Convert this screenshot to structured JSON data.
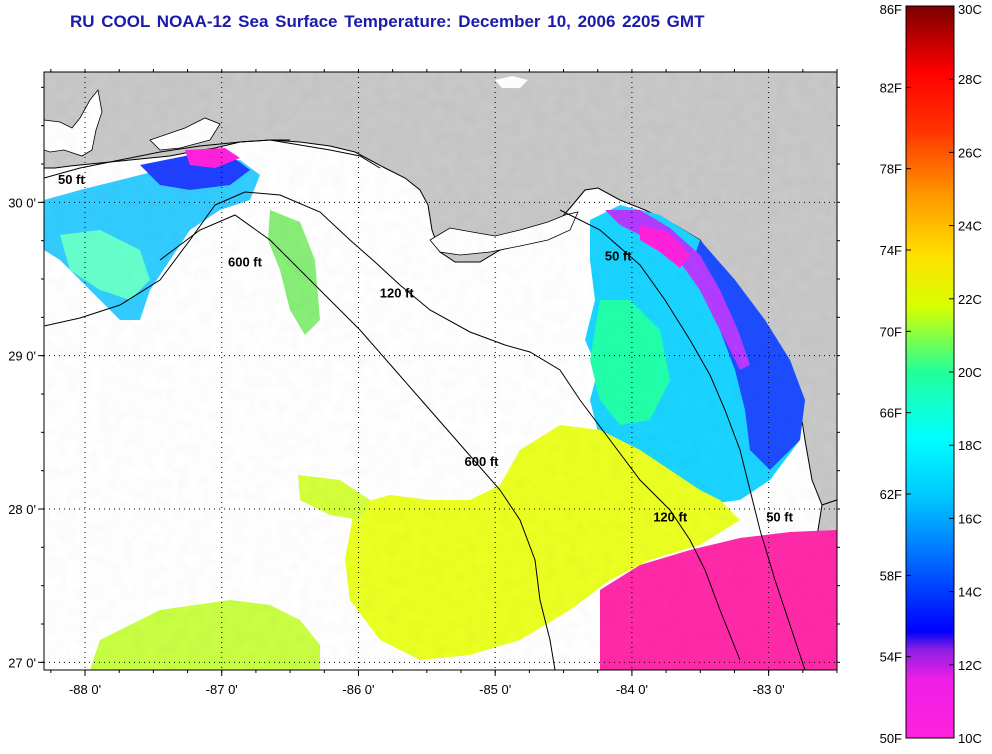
{
  "title": "RU COOL  NOAA-12  Sea Surface Temperature:  December 10, 2006 2205 GMT",
  "map": {
    "lon_range": [
      -88.3,
      -82.5
    ],
    "lat_range": [
      26.95,
      30.85
    ],
    "lon_ticks": [
      "-88 0'",
      "-87 0'",
      "-86 0'",
      "-85 0'",
      "-84 0'",
      "-83 0'"
    ],
    "lat_ticks": [
      "30 0'",
      "29 0'",
      "28 0'",
      "27 0'"
    ],
    "land_color": "#c8c8c8",
    "ocean_color": "#ffffff",
    "gridlines": "dotted",
    "contour_labels": [
      {
        "text": "50 ft",
        "lon": -88.1,
        "lat": 30.12
      },
      {
        "text": "600 ft",
        "lon": -86.83,
        "lat": 29.58
      },
      {
        "text": "120 ft",
        "lon": -85.72,
        "lat": 29.38
      },
      {
        "text": "50 ft",
        "lon": -84.1,
        "lat": 29.62
      },
      {
        "text": "600 ft",
        "lon": -85.1,
        "lat": 28.28
      },
      {
        "text": "120 ft",
        "lon": -83.72,
        "lat": 27.92
      },
      {
        "text": "50 ft",
        "lon": -82.92,
        "lat": 27.92
      }
    ]
  },
  "colorbar": {
    "left_labels": [
      "86F",
      "82F",
      "78F",
      "74F",
      "70F",
      "66F",
      "62F",
      "58F",
      "54F",
      "50F"
    ],
    "right_labels": [
      "30C",
      "28C",
      "26C",
      "24C",
      "22C",
      "20C",
      "18C",
      "16C",
      "14C",
      "12C",
      "10C"
    ],
    "range_f": [
      50,
      86
    ],
    "range_c": [
      10,
      30
    ],
    "colors": [
      "#ff22dd",
      "#8f1fe3",
      "#0000ff",
      "#0099ff",
      "#00ffff",
      "#22ff88",
      "#eaff00",
      "#ffc800",
      "#ff5500",
      "#ff0000",
      "#880000"
    ]
  }
}
